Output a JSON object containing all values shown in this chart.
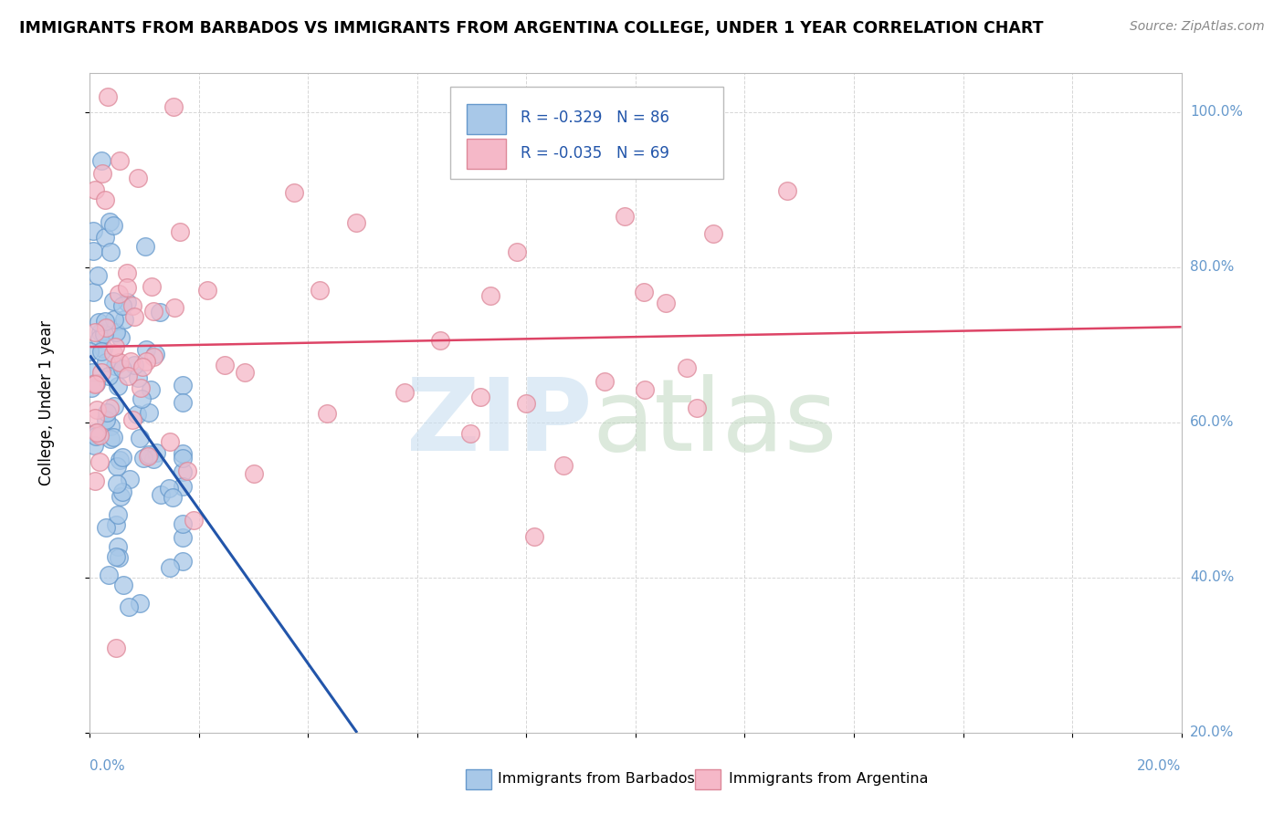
{
  "title": "IMMIGRANTS FROM BARBADOS VS IMMIGRANTS FROM ARGENTINA COLLEGE, UNDER 1 YEAR CORRELATION CHART",
  "source": "Source: ZipAtlas.com",
  "ylabel": "College, Under 1 year",
  "series": [
    {
      "name": "Immigrants from Barbados",
      "R": -0.329,
      "N": 86,
      "color": "#a8c8e8",
      "edge_color": "#6699cc",
      "line_color": "#2255aa"
    },
    {
      "name": "Immigrants from Argentina",
      "R": -0.035,
      "N": 69,
      "color": "#f5b8c8",
      "edge_color": "#dd8899",
      "line_color": "#dd4466"
    }
  ],
  "xmin": 0.0,
  "xmax": 0.2,
  "ymin": 0.2,
  "ymax": 1.05,
  "grid_color": "#cccccc",
  "background_color": "#ffffff",
  "right_tick_color": "#6699cc",
  "watermark_zip_color": "#c8dff0",
  "watermark_atlas_color": "#c0d8c0"
}
